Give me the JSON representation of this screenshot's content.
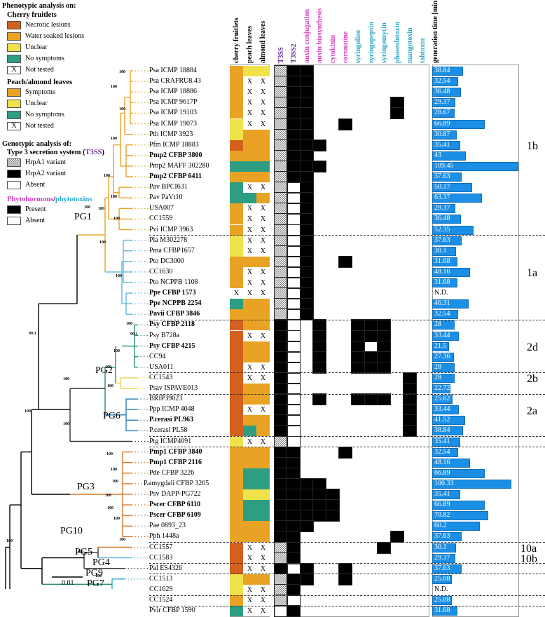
{
  "legend": {
    "title": "Phenotypic analysis on:",
    "cherry": {
      "title": "Cherry fruitlets",
      "items": [
        {
          "label": "Necrotic lesions",
          "color": "#d4601e"
        },
        {
          "label": "Water soaked lesions",
          "color": "#e8a324"
        },
        {
          "label": "Unclear",
          "color": "#f0e24a"
        },
        {
          "label": "No symptoms",
          "color": "#2e9e82"
        },
        {
          "label": "Not tested",
          "mark": "X"
        }
      ]
    },
    "peach": {
      "title": "Peach/almond leaves",
      "items": [
        {
          "label": "Symptoms",
          "color": "#e8a324"
        },
        {
          "label": "Unclear",
          "color": "#f0e24a"
        },
        {
          "label": "No symptoms",
          "color": "#2e9e82"
        },
        {
          "label": "Not tested",
          "mark": "X"
        }
      ]
    },
    "genotypic": {
      "title": "Genotypic analysis of:",
      "t3ss_prefix": "Type 3 secretion system (",
      "t3ss_abbr": "T3SS",
      "t3ss_suffix": ")",
      "items": [
        {
          "label": "HrpA1 variant"
        },
        {
          "label": "HrpA2 variant"
        },
        {
          "label": "Absent"
        }
      ]
    },
    "hormones": {
      "phyto": "Phytohormons",
      "slash": "/",
      "toxins": "phytotoxins",
      "items": [
        {
          "label": "Present"
        },
        {
          "label": "Absent"
        }
      ]
    }
  },
  "columns": {
    "phenotype": [
      "cherry fruitlets",
      "peach leaves",
      "almond leaves"
    ],
    "genes": [
      "T3SS",
      "T3SS2",
      "auxin conjugation",
      "auxin biosynthesis",
      "cytokinin",
      "coronatine",
      "syringoline",
      "syringopeptin",
      "syringomycin",
      "phaseolotoxin",
      "mangotoxin",
      "tabtoxin"
    ],
    "gene_colors": [
      "#6b2f9b",
      "#6b2f9b",
      "#d43fc0",
      "#d43fc0",
      "#d43fc0",
      "#d43fc0",
      "#2aa7c9",
      "#2aa7c9",
      "#2aa7c9",
      "#2aa7c9",
      "#2aa7c9",
      "#2aa7c9"
    ],
    "generation_time": "generation time [min]"
  },
  "strains": [
    {
      "name": "Psa ICMP 18884",
      "bold": false,
      "ph": [
        "W",
        "U",
        "U"
      ],
      "g": [
        2,
        1,
        1,
        0,
        0,
        0,
        0,
        0,
        0,
        0,
        0,
        0
      ],
      "gt": "38.84"
    },
    {
      "name": "Psa CRAFRU8.43",
      "bold": false,
      "ph": [
        "W",
        "X",
        "X"
      ],
      "g": [
        2,
        1,
        1,
        0,
        0,
        0,
        0,
        0,
        0,
        0,
        0,
        0
      ],
      "gt": "32.54"
    },
    {
      "name": "Psa ICMP 18886",
      "bold": false,
      "ph": [
        "W",
        "X",
        "X"
      ],
      "g": [
        2,
        1,
        1,
        0,
        0,
        0,
        0,
        0,
        0,
        0,
        0,
        0
      ],
      "gt": "36.48"
    },
    {
      "name": "Psa ICMP 9617P",
      "bold": false,
      "ph": [
        "W",
        "X",
        "X"
      ],
      "g": [
        2,
        1,
        1,
        0,
        0,
        0,
        0,
        0,
        0,
        1,
        0,
        0
      ],
      "gt": "29.37"
    },
    {
      "name": "Psa ICMP 19103",
      "bold": false,
      "ph": [
        "W",
        "X",
        "X"
      ],
      "g": [
        2,
        1,
        1,
        0,
        0,
        0,
        0,
        0,
        0,
        1,
        0,
        0
      ],
      "gt": "28.67"
    },
    {
      "name": "Psa ICMP 19073",
      "bold": false,
      "ph": [
        "U",
        "X",
        "X"
      ],
      "g": [
        2,
        1,
        1,
        0,
        0,
        1,
        0,
        0,
        0,
        0,
        0,
        0
      ],
      "gt": "66.89"
    },
    {
      "name": "Pth ICMP 3923",
      "bold": false,
      "ph": [
        "U",
        "W",
        "W"
      ],
      "g": [
        2,
        1,
        1,
        0,
        0,
        0,
        0,
        0,
        0,
        0,
        0,
        0
      ],
      "gt": "30.87"
    },
    {
      "name": "Pfm ICMP 18883",
      "bold": false,
      "ph": [
        "N",
        "W",
        "W"
      ],
      "g": [
        2,
        1,
        1,
        1,
        0,
        0,
        0,
        0,
        0,
        0,
        0,
        0
      ],
      "gt": "35.41"
    },
    {
      "name": "Pmp2 CFBP 3800",
      "bold": true,
      "ph": [
        "W",
        "W",
        "W"
      ],
      "g": [
        2,
        1,
        1,
        0,
        0,
        0,
        0,
        0,
        0,
        0,
        0,
        0
      ],
      "gt": "43"
    },
    {
      "name": "Pmp2 MAFF 302280",
      "bold": false,
      "ph": [
        "G",
        "G",
        "G"
      ],
      "g": [
        2,
        1,
        1,
        1,
        0,
        0,
        0,
        0,
        0,
        0,
        0,
        0
      ],
      "gt": "109.45"
    },
    {
      "name": "Pmp2 CFBP 6411",
      "bold": true,
      "ph": [
        "W",
        "W",
        "W"
      ],
      "g": [
        2,
        1,
        1,
        0,
        0,
        0,
        0,
        0,
        0,
        0,
        0,
        0
      ],
      "gt": "37.63"
    },
    {
      "name": "Pav BPCI631",
      "bold": false,
      "ph": [
        "G",
        "X",
        "X"
      ],
      "g": [
        2,
        0,
        1,
        0,
        0,
        0,
        0,
        0,
        0,
        0,
        0,
        0
      ],
      "gt": "50.17"
    },
    {
      "name": "Pav PaVt10",
      "bold": false,
      "ph": [
        "G",
        "G",
        "W"
      ],
      "g": [
        2,
        0,
        1,
        0,
        0,
        0,
        0,
        0,
        0,
        0,
        0,
        0
      ],
      "gt": "63.37"
    },
    {
      "name": "USA007",
      "bold": false,
      "ph": [
        "W",
        "X",
        "X"
      ],
      "g": [
        2,
        0,
        1,
        0,
        0,
        0,
        0,
        0,
        0,
        0,
        0,
        0
      ],
      "gt": "29.37"
    },
    {
      "name": "CC1559",
      "bold": false,
      "ph": [
        "W",
        "X",
        "X"
      ],
      "g": [
        2,
        0,
        1,
        0,
        0,
        0,
        0,
        0,
        0,
        0,
        0,
        0
      ],
      "gt": "36.48"
    },
    {
      "name": "Pvi ICMP 3963",
      "bold": false,
      "ph": [
        "W",
        "X",
        "X"
      ],
      "g": [
        2,
        0,
        1,
        0,
        0,
        0,
        0,
        0,
        0,
        0,
        0,
        0
      ],
      "gt": "52.35"
    },
    {
      "name": "Pla M302278",
      "bold": false,
      "ph": [
        "U",
        "X",
        "X"
      ],
      "g": [
        2,
        0,
        1,
        0,
        0,
        0,
        0,
        0,
        0,
        0,
        0,
        0
      ],
      "gt": "37.63"
    },
    {
      "name": "Pma CFBP1657",
      "bold": false,
      "ph": [
        "U",
        "X",
        "X"
      ],
      "g": [
        2,
        0,
        1,
        0,
        0,
        0,
        0,
        0,
        0,
        0,
        0,
        0
      ],
      "gt": "30.1"
    },
    {
      "name": "Pto DC3000",
      "bold": false,
      "ph": [
        "W",
        "W",
        "W"
      ],
      "g": [
        2,
        0,
        1,
        0,
        0,
        1,
        0,
        0,
        0,
        0,
        0,
        0
      ],
      "gt": "31.68"
    },
    {
      "name": "CC1630",
      "bold": false,
      "ph": [
        "W",
        "X",
        "X"
      ],
      "g": [
        2,
        0,
        1,
        0,
        0,
        0,
        0,
        0,
        0,
        0,
        0,
        0
      ],
      "gt": "48.16"
    },
    {
      "name": "Pto NCPPB 1108",
      "bold": false,
      "ph": [
        "W",
        "X",
        "X"
      ],
      "g": [
        2,
        0,
        1,
        0,
        0,
        0,
        0,
        0,
        0,
        0,
        0,
        0
      ],
      "gt": "31.68"
    },
    {
      "name": "Ppe CFBP 1573",
      "bold": true,
      "ph": [
        "X",
        "X",
        "X"
      ],
      "g": [
        2,
        0,
        1,
        0,
        0,
        0,
        0,
        0,
        0,
        0,
        0,
        0
      ],
      "gt": "N.D."
    },
    {
      "name": "Ppe NCPPB 2254",
      "bold": true,
      "ph": [
        "G",
        "W",
        "W"
      ],
      "g": [
        2,
        0,
        1,
        0,
        0,
        0,
        0,
        0,
        0,
        0,
        0,
        0
      ],
      "gt": "46.31"
    },
    {
      "name": "Pavii CFBP 3846",
      "bold": true,
      "ph": [
        "W",
        "W",
        "W"
      ],
      "g": [
        2,
        0,
        1,
        0,
        0,
        0,
        0,
        0,
        0,
        0,
        0,
        0
      ],
      "gt": "32.54"
    },
    {
      "name": "Psy CFBP 2118",
      "bold": true,
      "ph": [
        "N",
        "W",
        "W"
      ],
      "g": [
        1,
        0,
        0,
        1,
        0,
        0,
        1,
        1,
        1,
        0,
        0,
        0
      ],
      "gt": "28"
    },
    {
      "name": "Psy B728a",
      "bold": false,
      "ph": [
        "N",
        "X",
        "X"
      ],
      "g": [
        1,
        0,
        0,
        1,
        0,
        0,
        1,
        1,
        1,
        0,
        0,
        0
      ],
      "gt": "33.44"
    },
    {
      "name": "Psy CFBP 4215",
      "bold": true,
      "ph": [
        "N",
        "W",
        "W"
      ],
      "g": [
        1,
        0,
        0,
        1,
        0,
        0,
        1,
        0,
        1,
        0,
        0,
        0
      ],
      "gt": "21.5"
    },
    {
      "name": "CC94",
      "bold": false,
      "ph": [
        "N",
        "W",
        "W"
      ],
      "g": [
        1,
        0,
        0,
        1,
        0,
        0,
        1,
        1,
        1,
        0,
        0,
        0
      ],
      "gt": "27.36"
    },
    {
      "name": "USA011",
      "bold": false,
      "ph": [
        "N",
        "X",
        "X"
      ],
      "g": [
        1,
        0,
        0,
        1,
        0,
        0,
        1,
        1,
        1,
        0,
        0,
        0
      ],
      "gt": "28"
    },
    {
      "name": "CC1543",
      "bold": false,
      "ph": [
        "N",
        "X",
        "X"
      ],
      "g": [
        1,
        0,
        0,
        0,
        0,
        0,
        0,
        0,
        0,
        0,
        1,
        0
      ],
      "gt": "28"
    },
    {
      "name": "Psav ISPAVE013",
      "bold": false,
      "ph": [
        "N",
        "W",
        "W"
      ],
      "g": [
        1,
        0,
        0,
        0,
        0,
        0,
        0,
        0,
        0,
        0,
        1,
        0
      ],
      "gt": "22.72"
    },
    {
      "name": "BRIP39023",
      "bold": false,
      "ph": [
        "N",
        "W",
        "W"
      ],
      "g": [
        1,
        0,
        0,
        1,
        0,
        0,
        1,
        1,
        1,
        0,
        1,
        0
      ],
      "gt": "25.62"
    },
    {
      "name": "Ppp ICMP 4048",
      "bold": false,
      "ph": [
        "N",
        "X",
        "X"
      ],
      "g": [
        1,
        0,
        0,
        0,
        0,
        0,
        0,
        0,
        0,
        0,
        1,
        0
      ],
      "gt": "33.44"
    },
    {
      "name": "P.cerasi PL963",
      "bold": true,
      "ph": [
        "N",
        "W",
        "W"
      ],
      "g": [
        1,
        0,
        0,
        0,
        0,
        0,
        0,
        0,
        0,
        0,
        1,
        0
      ],
      "gt": "41.52"
    },
    {
      "name": "P.cerasi PL58",
      "bold": false,
      "ph": [
        "N",
        "G",
        "W"
      ],
      "g": [
        1,
        0,
        0,
        0,
        0,
        0,
        0,
        0,
        0,
        0,
        1,
        0
      ],
      "gt": "38.84"
    },
    {
      "name": "Ptg ICMP4091",
      "bold": false,
      "ph": [
        "U",
        "X",
        "X"
      ],
      "g": [
        2,
        0,
        0,
        0,
        0,
        0,
        0,
        0,
        0,
        0,
        0,
        0
      ],
      "gt": "35.41"
    },
    {
      "name": "Pmp1 CFBP 3840",
      "bold": true,
      "ph": [
        "W",
        "W",
        "W"
      ],
      "g": [
        1,
        1,
        0,
        0,
        0,
        1,
        0,
        0,
        0,
        0,
        0,
        0
      ],
      "gt": "32.54"
    },
    {
      "name": "Pmp1 CFBP 2116",
      "bold": true,
      "ph": [
        "W",
        "W",
        "W"
      ],
      "g": [
        1,
        1,
        0,
        0,
        0,
        0,
        0,
        0,
        0,
        0,
        0,
        0
      ],
      "gt": "48.16"
    },
    {
      "name": "Pde CFBP 3226",
      "bold": false,
      "ph": [
        "W",
        "G",
        "G"
      ],
      "g": [
        1,
        1,
        0,
        0,
        0,
        0,
        0,
        0,
        0,
        0,
        0,
        0
      ],
      "gt": "66.89"
    },
    {
      "name": "P.amygdali CFBP 3205",
      "bold": false,
      "ph": [
        "W",
        "G",
        "G"
      ],
      "g": [
        1,
        1,
        1,
        1,
        0,
        0,
        0,
        0,
        0,
        0,
        0,
        0
      ],
      "gt": "100.33"
    },
    {
      "name": "Psv DAPP-PG722",
      "bold": false,
      "ph": [
        "W",
        "U",
        "U"
      ],
      "g": [
        1,
        1,
        1,
        1,
        1,
        0,
        0,
        0,
        0,
        0,
        0,
        0
      ],
      "gt": "35.41"
    },
    {
      "name": "Pscer CFBP 6110",
      "bold": true,
      "ph": [
        "W",
        "G",
        "G"
      ],
      "g": [
        1,
        1,
        1,
        1,
        1,
        0,
        0,
        0,
        0,
        0,
        0,
        0
      ],
      "gt": "66.89"
    },
    {
      "name": "Pscer CFBP 6109",
      "bold": true,
      "ph": [
        "W",
        "G",
        "G"
      ],
      "g": [
        1,
        1,
        1,
        1,
        1,
        0,
        0,
        0,
        0,
        0,
        0,
        0
      ],
      "gt": "70.82"
    },
    {
      "name": "Pae 0893_23",
      "bold": false,
      "ph": [
        "W",
        "W",
        "W"
      ],
      "g": [
        1,
        1,
        1,
        0,
        0,
        0,
        0,
        0,
        0,
        0,
        0,
        0
      ],
      "gt": "60.2"
    },
    {
      "name": "Pph 1448a",
      "bold": false,
      "ph": [
        "W",
        "W",
        "W"
      ],
      "g": [
        1,
        1,
        0,
        0,
        0,
        0,
        0,
        0,
        0,
        1,
        0,
        0
      ],
      "gt": "37.63"
    },
    {
      "name": "CC1557",
      "bold": false,
      "ph": [
        "N",
        "X",
        "X"
      ],
      "g": [
        3,
        1,
        0,
        0,
        0,
        0,
        0,
        0,
        1,
        0,
        0,
        0
      ],
      "gt": "30.1"
    },
    {
      "name": "CC1583",
      "bold": false,
      "ph": [
        "N",
        "X",
        "X"
      ],
      "g": [
        3,
        1,
        0,
        0,
        0,
        0,
        0,
        0,
        0,
        0,
        0,
        0
      ],
      "gt": "29.37"
    },
    {
      "name": "Pal ES4326",
      "bold": false,
      "ph": [
        "N",
        "X",
        "X"
      ],
      "g": [
        1,
        0,
        1,
        0,
        0,
        1,
        0,
        0,
        0,
        0,
        0,
        0
      ],
      "gt": "37.63"
    },
    {
      "name": "CC1513",
      "bold": false,
      "ph": [
        "U",
        "W",
        "W"
      ],
      "g": [
        3,
        1,
        1,
        0,
        0,
        1,
        0,
        0,
        0,
        0,
        0,
        0
      ],
      "gt": "25.08"
    },
    {
      "name": "CC1629",
      "bold": false,
      "ph": [
        "U",
        "X",
        "X"
      ],
      "g": [
        3,
        1,
        0,
        0,
        0,
        0,
        0,
        0,
        0,
        0,
        0,
        0
      ],
      "gt": "N.D."
    },
    {
      "name": "CC1524",
      "bold": false,
      "ph": [
        "W",
        "X",
        "X"
      ],
      "g": [
        3,
        0,
        0,
        0,
        0,
        0,
        0,
        0,
        0,
        0,
        0,
        0
      ],
      "gt": "25.08"
    },
    {
      "name": "Pvir CFBP 1590",
      "bold": false,
      "ph": [
        "G",
        "X",
        "X"
      ],
      "g": [
        0,
        1,
        0,
        0,
        0,
        0,
        0,
        0,
        0,
        0,
        0,
        0
      ],
      "gt": "31.68"
    }
  ],
  "clades": [
    "1b",
    "1a",
    "2d",
    "2b",
    "2a",
    "10a",
    "10b"
  ],
  "phylogroups": [
    "PG1",
    "PG2",
    "PG6",
    "PG3",
    "PG10",
    "PG5",
    "PG4",
    "PG9",
    "PG7"
  ],
  "bootstrap": [
    "100",
    "99.1",
    "99.3"
  ],
  "scale_label": "0.01",
  "colors": {
    "N": "#d4601e",
    "W": "#e8a324",
    "U": "#f0e24a",
    "G": "#2e9e82",
    "bar": "#1b8ee6",
    "pg1": "#e8a324",
    "pg1a": "#5fb5e0",
    "pg2": "#1e8f6e",
    "pg3": "#d6782a"
  }
}
